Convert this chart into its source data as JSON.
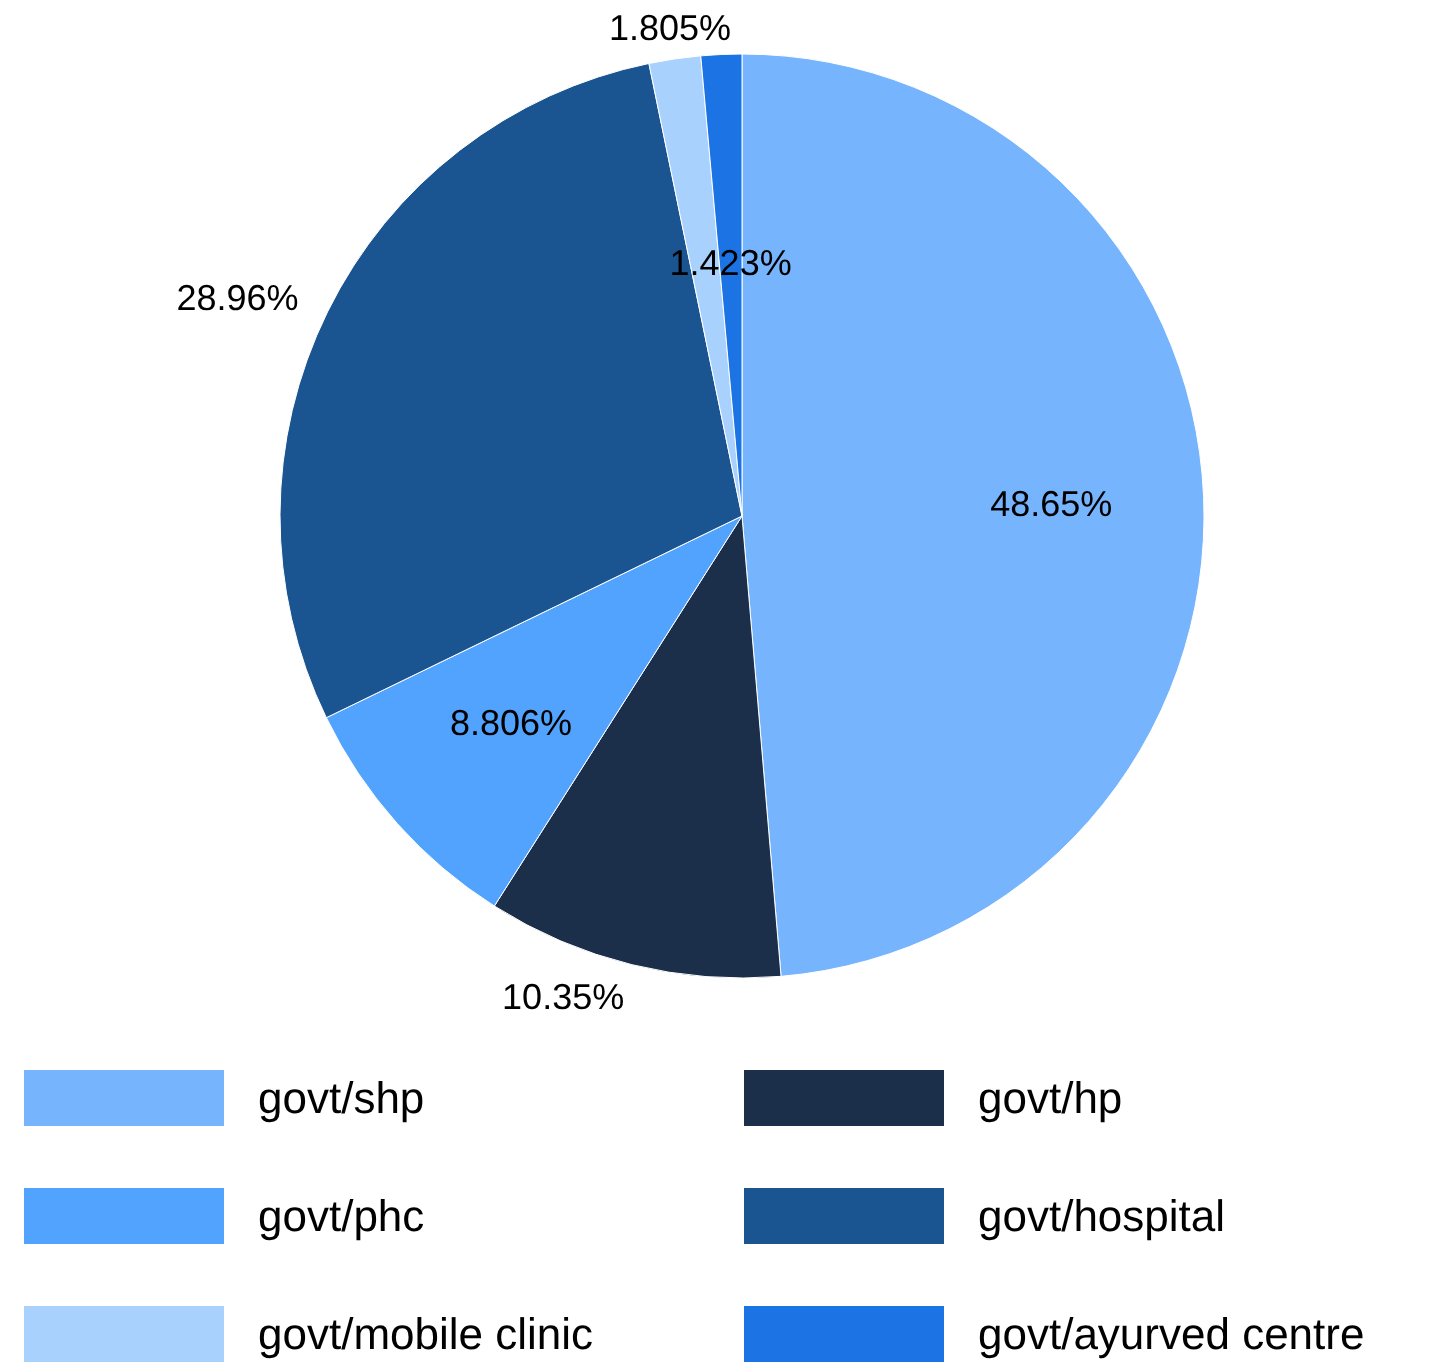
{
  "chart_data": {
    "type": "pie",
    "categories": [
      "govt/shp",
      "govt/hp",
      "govt/phc",
      "govt/hospital",
      "govt/mobile clinic",
      "govt/ayurved centre"
    ],
    "values": [
      48.65,
      10.35,
      8.806,
      28.96,
      1.805,
      1.423
    ],
    "colors": [
      "#76b5fe",
      "#1b2f4b",
      "#52a3fe",
      "#1a5592",
      "#a8d1fe",
      "#1c74e4"
    ],
    "value_labels": [
      "48.65%",
      "10.35%",
      "8.806%",
      "28.96%",
      "1.805%",
      "1.423%"
    ],
    "legend": "bottom"
  }
}
